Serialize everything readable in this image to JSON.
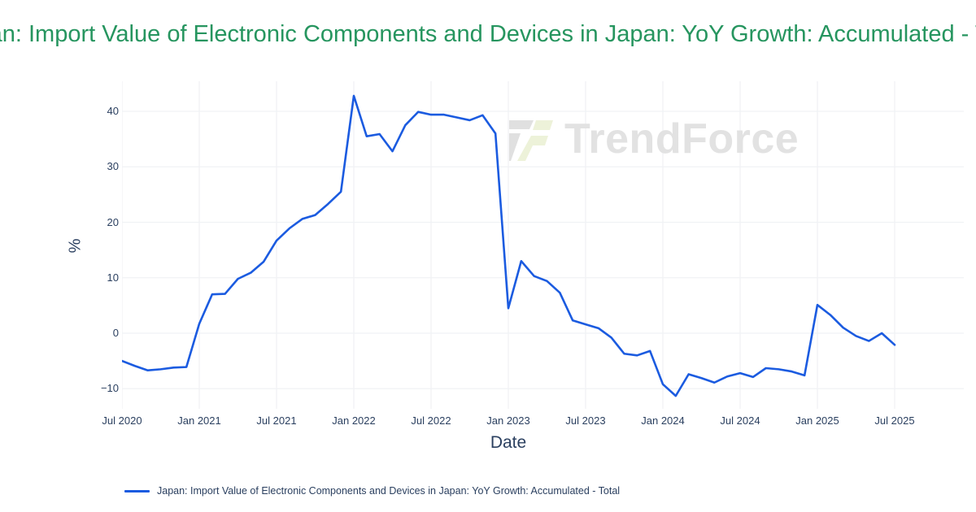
{
  "title": "Japan: Import Value of Electronic Components and Devices in Japan: YoY Growth: Accumulated - Total",
  "axes": {
    "x_title": "Date",
    "y_title": "%"
  },
  "legend": {
    "label": "Japan: Import Value of Electronic Components and Devices in Japan: YoY Growth: Accumulated - Total"
  },
  "watermark": {
    "text": "TrendForce"
  },
  "colors": {
    "line": "#1b5be0",
    "title": "#26955f",
    "axis_text": "#2a3f5f",
    "grid": "#f0f2f5",
    "watermark_text": "#e2e2e2",
    "watermark_logo_gray": "#e0e0e0",
    "watermark_logo_green": "#edf2d9",
    "background": "#ffffff"
  },
  "chart_data": {
    "type": "line",
    "title": "Japan: Import Value of Electronic Components and Devices in Japan: YoY Growth: Accumulated - Total",
    "xlabel": "Date",
    "ylabel": "%",
    "grid": true,
    "legend_position": "bottom-left",
    "ylim": [
      -14,
      45
    ],
    "y_ticks": [
      -10,
      0,
      10,
      20,
      30,
      40
    ],
    "x_ticks": [
      "Jul 2020",
      "Jan 2021",
      "Jul 2021",
      "Jan 2022",
      "Jul 2022",
      "Jan 2023",
      "Jul 2023",
      "Jan 2024",
      "Jul 2024",
      "Jan 2025",
      "Jul 2025"
    ],
    "x_tick_interval_months": 6,
    "x": [
      "Jul 2020",
      "Aug 2020",
      "Sep 2020",
      "Oct 2020",
      "Nov 2020",
      "Dec 2020",
      "Jan 2021",
      "Feb 2021",
      "Mar 2021",
      "Apr 2021",
      "May 2021",
      "Jun 2021",
      "Jul 2021",
      "Aug 2021",
      "Sep 2021",
      "Oct 2021",
      "Nov 2021",
      "Dec 2021",
      "Jan 2022",
      "Feb 2022",
      "Mar 2022",
      "Apr 2022",
      "May 2022",
      "Jun 2022",
      "Jul 2022",
      "Aug 2022",
      "Sep 2022",
      "Oct 2022",
      "Nov 2022",
      "Dec 2022",
      "Jan 2023",
      "Feb 2023",
      "Mar 2023",
      "Apr 2023",
      "May 2023",
      "Jun 2023",
      "Jul 2023",
      "Aug 2023",
      "Sep 2023",
      "Oct 2023",
      "Nov 2023",
      "Dec 2023",
      "Jan 2024",
      "Feb 2024",
      "Mar 2024",
      "Apr 2024",
      "May 2024",
      "Jun 2024",
      "Jul 2024",
      "Aug 2024",
      "Sep 2024",
      "Oct 2024",
      "Nov 2024",
      "Dec 2024",
      "Jan 2025",
      "Feb 2025",
      "Mar 2025",
      "Apr 2025",
      "May 2025",
      "Jun 2025",
      "Jul 2025"
    ],
    "series": [
      {
        "name": "Japan: Import Value of Electronic Components and Devices in Japan: YoY Growth: Accumulated - Total",
        "values": [
          -5.0,
          -5.9,
          -6.7,
          -6.5,
          -6.2,
          -6.1,
          1.7,
          7.0,
          7.1,
          9.8,
          10.9,
          12.9,
          16.7,
          18.9,
          20.6,
          21.3,
          23.3,
          25.5,
          42.8,
          35.5,
          35.9,
          32.8,
          37.5,
          39.9,
          39.4,
          39.4,
          38.9,
          38.4,
          39.3,
          36.0,
          4.5,
          13.0,
          10.3,
          9.4,
          7.3,
          2.3,
          1.6,
          0.9,
          -0.8,
          -3.7,
          -4.0,
          -3.2,
          -9.2,
          -11.3,
          -7.4,
          -8.1,
          -8.9,
          -7.8,
          -7.2,
          -7.9,
          -6.3,
          -6.5,
          -6.9,
          -7.6,
          5.1,
          3.3,
          1.0,
          -0.5,
          -1.4,
          0.0,
          -2.1
        ]
      }
    ]
  }
}
